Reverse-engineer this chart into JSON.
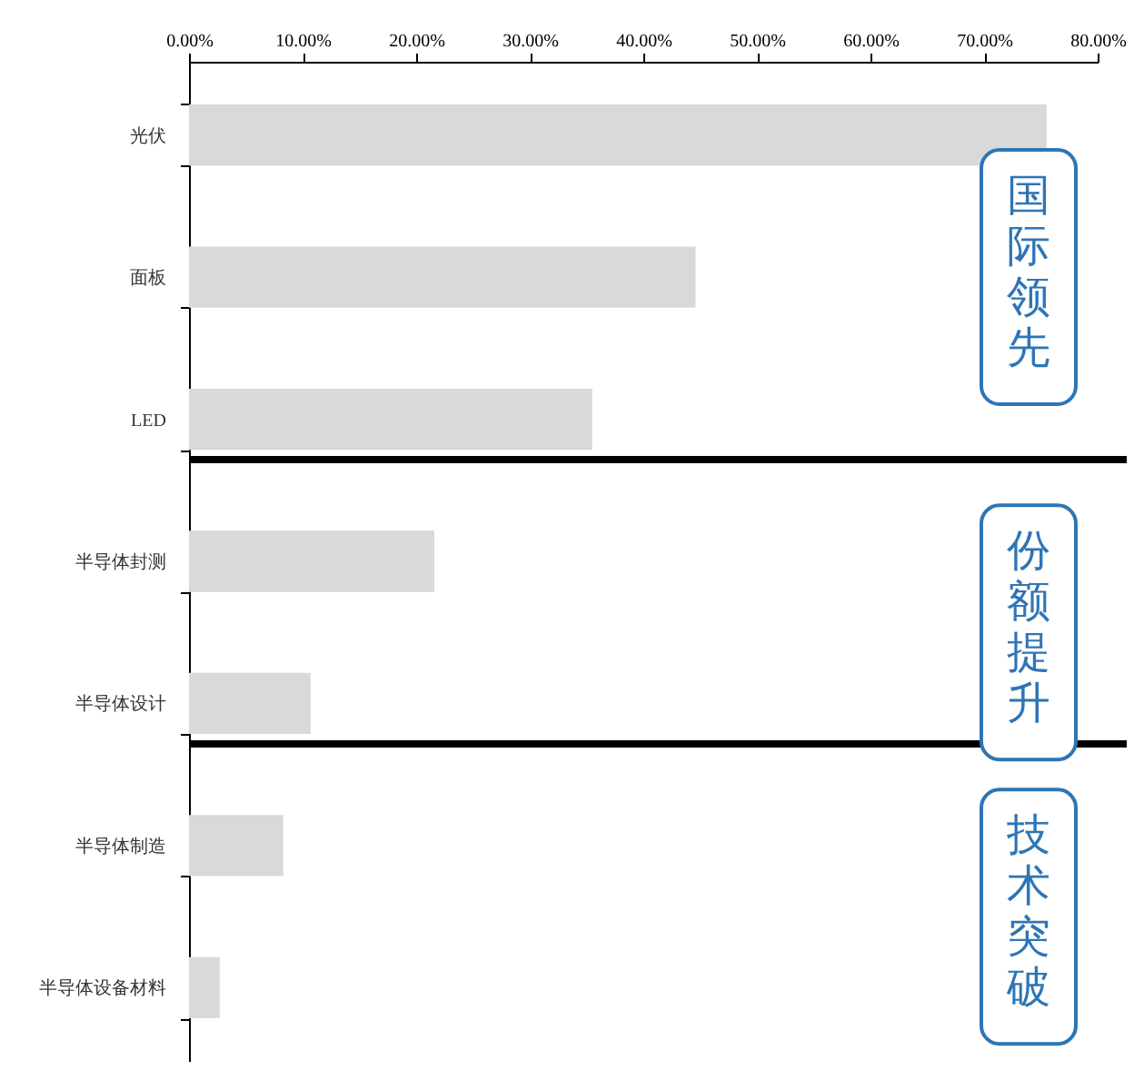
{
  "chart_data": {
    "type": "bar",
    "orientation": "horizontal",
    "categories": [
      "光伏",
      "面板",
      "LED",
      "半导体封测",
      "半导体设计",
      "半导体制造",
      "半导体设备材料"
    ],
    "values": [
      75.5,
      44.6,
      35.5,
      21.6,
      10.7,
      8.3,
      2.7
    ],
    "color": "#d9d9d9",
    "xlim": [
      0,
      80
    ],
    "xticks": [
      {
        "value": 0,
        "label": "0.00%"
      },
      {
        "value": 10,
        "label": "10.00%"
      },
      {
        "value": 20,
        "label": "20.00%"
      },
      {
        "value": 30,
        "label": "30.00%"
      },
      {
        "value": 40,
        "label": "40.00%"
      },
      {
        "value": 50,
        "label": "50.00%"
      },
      {
        "value": 60,
        "label": "60.00%"
      },
      {
        "value": 70,
        "label": "70.00%"
      },
      {
        "value": 80,
        "label": "80.00%"
      }
    ],
    "bands": [
      {
        "axis": "y",
        "from": "光伏",
        "to": "LED",
        "label": "国际领先",
        "color": "#2e75b6"
      },
      {
        "axis": "y",
        "from": "半导体封测",
        "to": "半导体设计",
        "label": "份额提升",
        "color": "#2e75b6"
      },
      {
        "axis": "y",
        "from": "半导体制造",
        "to": "半导体设备材料",
        "label": "技术突破",
        "color": "#2e75b6"
      }
    ],
    "ref_lines": [
      {
        "axis": "y",
        "value": "LED",
        "color": "#000000",
        "line_style": "solid"
      },
      {
        "axis": "y",
        "value": "半导体设计",
        "color": "#000000",
        "line_style": "solid"
      }
    ],
    "grid": false
  }
}
